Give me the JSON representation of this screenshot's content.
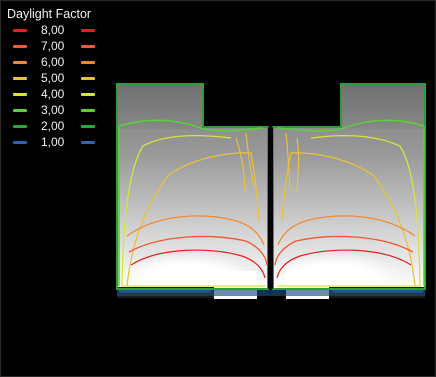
{
  "chart_data": {
    "type": "contour",
    "title": "Daylight Factor",
    "legend": {
      "placement": "top-left",
      "entries": [
        {
          "label": "8,00",
          "color": "#e41f1f",
          "level": 8
        },
        {
          "label": "7,00",
          "color": "#ee5a32",
          "level": 7
        },
        {
          "label": "6,00",
          "color": "#f08a35",
          "level": 6
        },
        {
          "label": "5,00",
          "color": "#e8c23a",
          "level": 5
        },
        {
          "label": "4,00",
          "color": "#d9e33b",
          "level": 4
        },
        {
          "label": "3,00",
          "color": "#5ccf3a",
          "level": 3
        },
        {
          "label": "2,00",
          "color": "#2aa838",
          "level": 2
        },
        {
          "label": "1,00",
          "color": "#2f63b8",
          "level": 1
        }
      ]
    },
    "grid": false
  }
}
